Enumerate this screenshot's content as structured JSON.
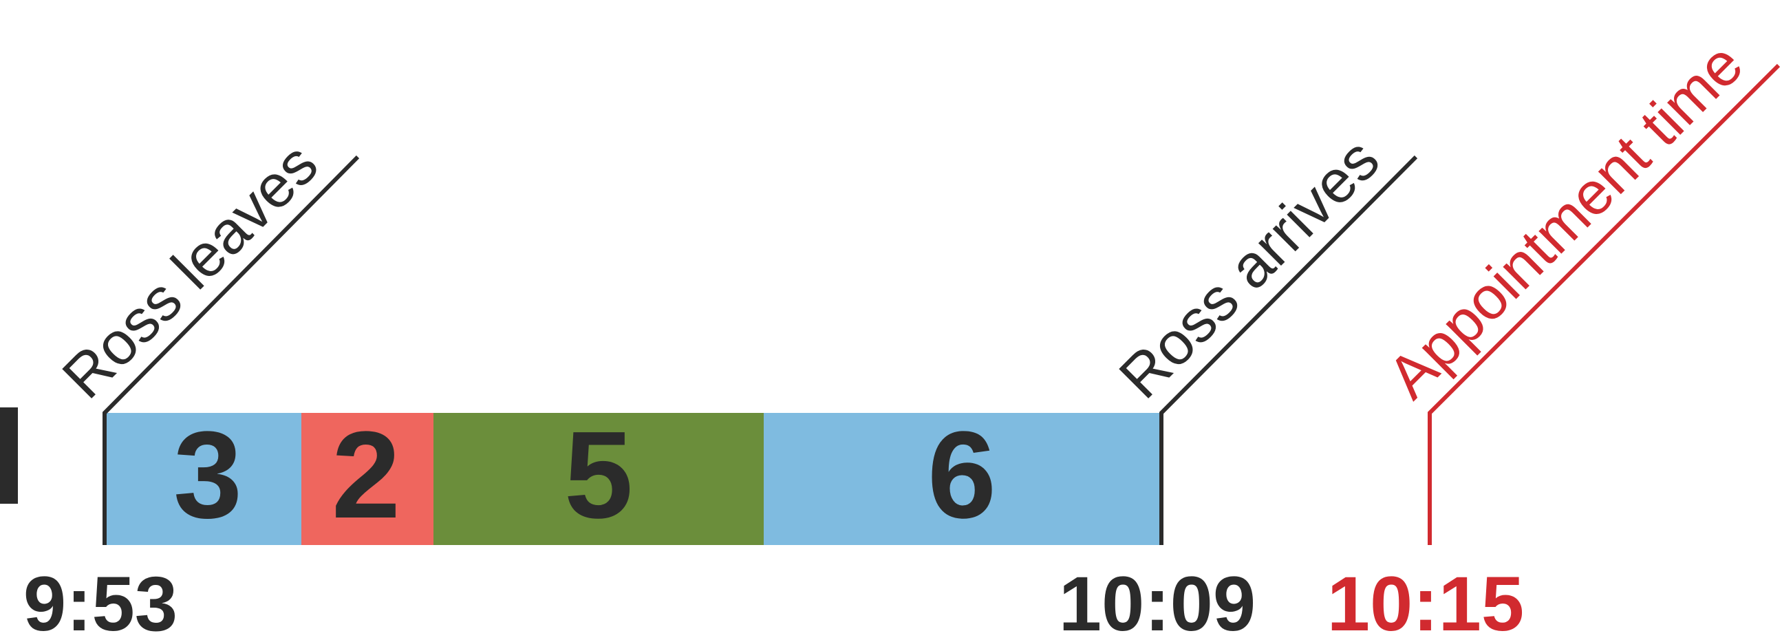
{
  "segments": [
    {
      "label": "3",
      "color": "#7fbbe0"
    },
    {
      "label": "2",
      "color": "#ef665e"
    },
    {
      "label": "5",
      "color": "#6b8e3b"
    },
    {
      "label": "6",
      "color": "#7fbbe0"
    }
  ],
  "events": [
    {
      "label": "Ross leaves",
      "time": "9:53",
      "color": "#2b2b2b"
    },
    {
      "label": "Ross arrives",
      "time": "10:09",
      "color": "#2b2b2b"
    },
    {
      "label": "Appointment time",
      "time": "10:15",
      "color": "#d12a2f"
    }
  ],
  "colors": {
    "text": "#2b2b2b",
    "accent": "#d12a2f",
    "background": "#ffffff"
  }
}
